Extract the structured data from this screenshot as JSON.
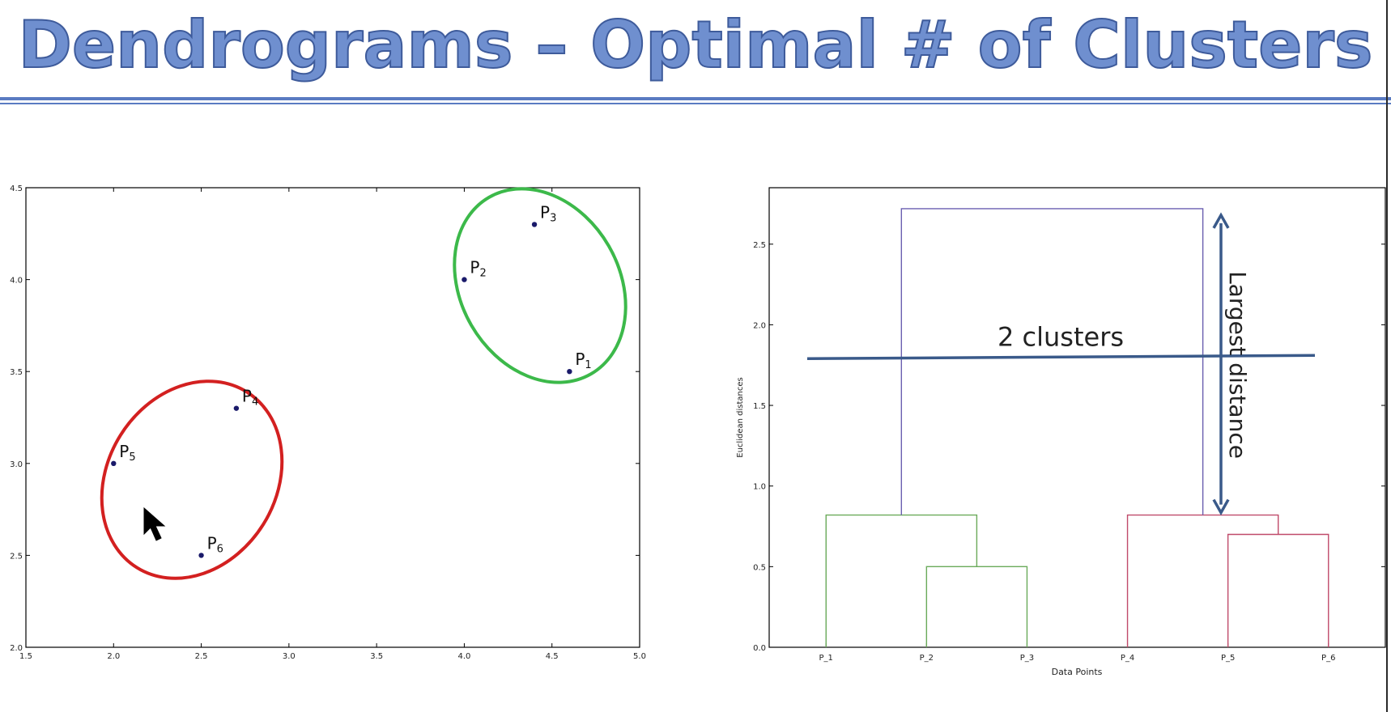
{
  "slide": {
    "title": "Dendrograms – Optimal # of Clusters"
  },
  "colors": {
    "title": "#6f8fcf",
    "rule": "#5a7bc2",
    "cluster_red": "#d32020",
    "cluster_green": "#3cb94a",
    "dendro_top": "#6a5fb0",
    "dendro_left": "#6aaa5a",
    "dendro_right": "#c04a6a",
    "annotation": "#3a5a8a"
  },
  "chart_data": [
    {
      "type": "scatter",
      "title": "",
      "xlabel": "",
      "ylabel": "",
      "xlim": [
        1.5,
        5.0
      ],
      "ylim": [
        2.0,
        4.5
      ],
      "xticks": [
        "1.5",
        "2.0",
        "2.5",
        "3.0",
        "3.5",
        "4.0",
        "4.5",
        "5.0"
      ],
      "yticks": [
        "2.0",
        "2.5",
        "3.0",
        "3.5",
        "4.0",
        "4.5"
      ],
      "points": [
        {
          "label": "P",
          "sub": "1",
          "x": 4.6,
          "y": 3.5
        },
        {
          "label": "P",
          "sub": "2",
          "x": 4.0,
          "y": 4.0
        },
        {
          "label": "P",
          "sub": "3",
          "x": 4.4,
          "y": 4.3
        },
        {
          "label": "P",
          "sub": "4",
          "x": 2.7,
          "y": 3.3
        },
        {
          "label": "P",
          "sub": "5",
          "x": 2.0,
          "y": 3.0
        },
        {
          "label": "P",
          "sub": "6",
          "x": 2.5,
          "y": 2.5
        }
      ],
      "cluster_outlines": [
        {
          "color": "red",
          "members": [
            "P4",
            "P5",
            "P6"
          ]
        },
        {
          "color": "green",
          "members": [
            "P1",
            "P2",
            "P3"
          ]
        }
      ]
    },
    {
      "type": "dendrogram",
      "title": "",
      "xlabel": "Data Points",
      "ylabel": "Euclidean distances",
      "ylim": [
        0.0,
        2.85
      ],
      "yticks": [
        "0.0",
        "0.5",
        "1.0",
        "1.5",
        "2.0",
        "2.5"
      ],
      "leaves": [
        "P_1",
        "P_2",
        "P_3",
        "P_4",
        "P_5",
        "P_6"
      ],
      "merges": [
        {
          "left": "P_2",
          "right": "P_3",
          "height": 0.5,
          "color": "green"
        },
        {
          "left": "P_1",
          "right": "P_2+P_3",
          "height": 0.82,
          "color": "green"
        },
        {
          "left": "P_5",
          "right": "P_6",
          "height": 0.7,
          "color": "red"
        },
        {
          "left": "P_4",
          "right": "P_5+P_6",
          "height": 0.82,
          "color": "red"
        },
        {
          "left": "C1",
          "right": "C2",
          "height": 2.72,
          "color": "blue"
        }
      ],
      "threshold": {
        "label": "2 clusters",
        "height": 1.8
      },
      "largest_distance": {
        "label": "Largest distance",
        "from": 0.82,
        "to": 2.72
      }
    }
  ]
}
